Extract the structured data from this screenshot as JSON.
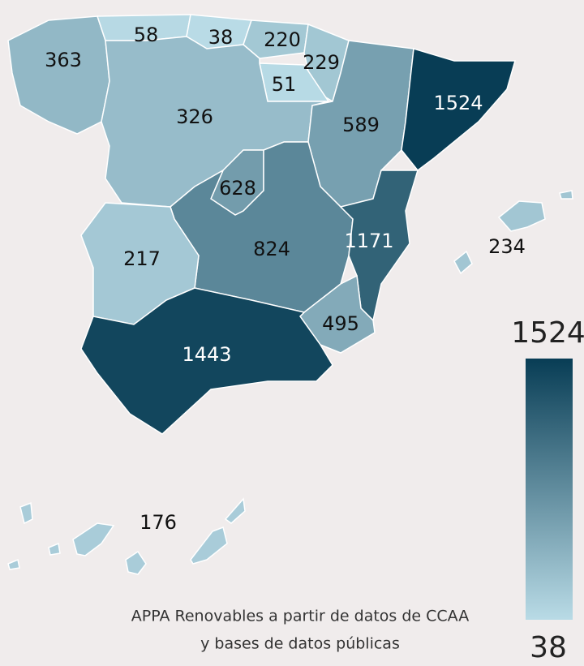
{
  "map": {
    "regions": [
      {
        "value": 363
      },
      {
        "value": 58
      },
      {
        "value": 38
      },
      {
        "value": 220
      },
      {
        "value": 229
      },
      {
        "value": 51
      },
      {
        "value": 326
      },
      {
        "value": 589
      },
      {
        "value": 1524
      },
      {
        "value": 628
      },
      {
        "value": 824
      },
      {
        "value": 217
      },
      {
        "value": 1171
      },
      {
        "value": 495
      },
      {
        "value": 1443
      },
      {
        "value": 234
      },
      {
        "value": 176
      }
    ],
    "legend": {
      "max": 1524,
      "min": 38,
      "colors": [
        "#b9dbe6",
        "#083d55"
      ]
    },
    "source": [
      "APPA Renovables a partir de datos de CCAA",
      "y bases de datos públicas"
    ]
  }
}
